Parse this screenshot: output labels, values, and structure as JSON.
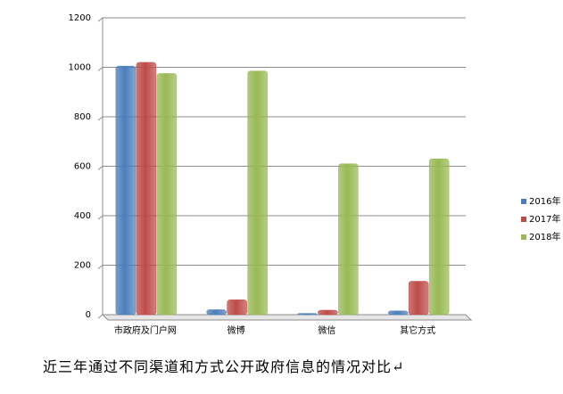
{
  "chart_data": {
    "type": "bar",
    "caption": "近三年通过不同渠道和方式公开政府信息的情况对比↵",
    "categories": [
      "市政府及门户网",
      "微博",
      "微信",
      "其它方式"
    ],
    "series": [
      {
        "name": "2016年",
        "color": "#4a7ebb",
        "values": [
          1005,
          20,
          5,
          15
        ]
      },
      {
        "name": "2017年",
        "color": "#be4b48",
        "values": [
          1020,
          60,
          18,
          135
        ]
      },
      {
        "name": "2018年",
        "color": "#98b954",
        "values": [
          975,
          985,
          610,
          630
        ]
      }
    ],
    "ylim": [
      0,
      1200
    ],
    "yticks": [
      0,
      200,
      400,
      600,
      800,
      1000,
      1200
    ],
    "grid": true,
    "legend": "right"
  }
}
